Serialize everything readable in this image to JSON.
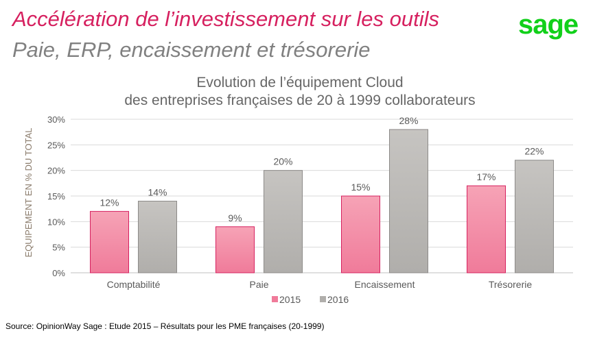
{
  "header": {
    "title_line1": "Accélération de l’investissement sur les outils",
    "title_line2": "Paie, ERP, encaissement et trésorerie",
    "logo_text": "sage"
  },
  "footer": {
    "source": "Source: OpinionWay  Sage : Etude 2015 –  Résultats pour les PME françaises (20-1999)"
  },
  "colors": {
    "series_2015": "#f07b9a",
    "series_2016": "#b0aeab",
    "title_pink": "#d6205f",
    "logo_green": "#11d01a"
  },
  "chart_data": {
    "type": "bar",
    "title_line1": "Evolution de l’équipement Cloud",
    "title_line2": "des entreprises françaises de 20 à 1999 collaborateurs",
    "categories": [
      "Comptabilité",
      "Paie",
      "Encaissement",
      "Trésorerie"
    ],
    "series": [
      {
        "name": "2015",
        "values": [
          12,
          9,
          15,
          17
        ],
        "labels": [
          "12%",
          "9%",
          "15%",
          "17%"
        ]
      },
      {
        "name": "2016",
        "values": [
          14,
          20,
          28,
          22
        ],
        "labels": [
          "14%",
          "20%",
          "28%",
          "22%"
        ]
      }
    ],
    "ylabel": "EQUIPEMENT EN % DU TOTAL",
    "ylim": [
      0,
      30
    ],
    "yticks": [
      0,
      5,
      10,
      15,
      20,
      25,
      30
    ],
    "ytick_labels": [
      "0%",
      "5%",
      "10%",
      "15%",
      "20%",
      "25%",
      "30%"
    ],
    "grid": true,
    "legend_position": "bottom"
  }
}
